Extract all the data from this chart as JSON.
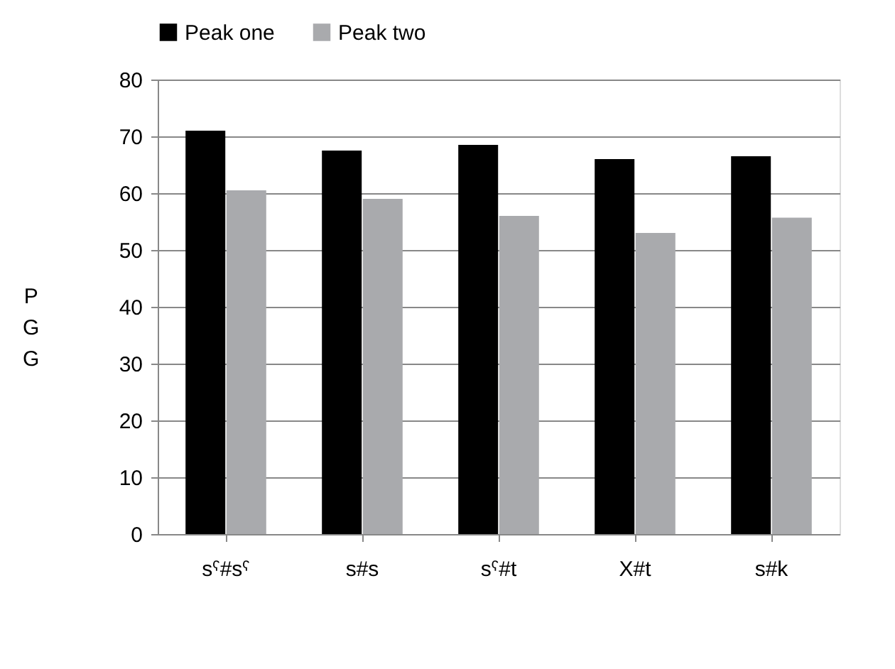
{
  "chart_data": {
    "type": "bar",
    "ylabel": "PGG",
    "categories": [
      "sˤ#sˤ",
      "s#s",
      "sˤ#t",
      "X#t",
      "s#k"
    ],
    "series": [
      {
        "name": "Peak one",
        "color": "#000000",
        "values": [
          71,
          67.5,
          68.5,
          66,
          66.5
        ]
      },
      {
        "name": "Peak two",
        "color": "#a9aaad",
        "values": [
          60.5,
          59,
          56,
          53,
          55.7
        ]
      }
    ],
    "ylim": [
      0,
      80
    ],
    "yticks": [
      0,
      10,
      20,
      30,
      40,
      50,
      60,
      70,
      80
    ],
    "grid": "y",
    "legend": "top"
  }
}
